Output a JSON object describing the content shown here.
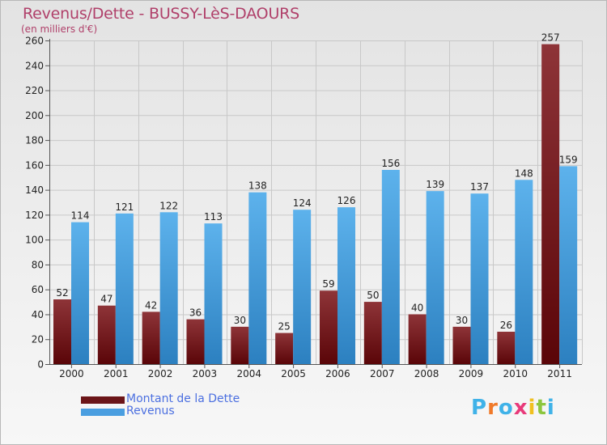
{
  "title": "Revenus/Dette - BUSSY-LèS-DAOURS",
  "subtitle": "(en milliers d'€)",
  "logo": {
    "letters": [
      "P",
      "r",
      "o",
      "x",
      "i",
      "t",
      "i"
    ],
    "colors": [
      "#3fb2e8",
      "#f07a2a",
      "#3fb2e8",
      "#e83a7a",
      "#f0c020",
      "#8cc63e",
      "#3fb2e8"
    ]
  },
  "colors": {
    "dette_top": "#8e3438",
    "dette_bottom": "#5a0508",
    "revenus_top": "#5db2ec",
    "revenus_bottom": "#2c80c0"
  },
  "legend": [
    {
      "label": "Montant de la Dette",
      "color": "#6b1518"
    },
    {
      "label": "Revenus",
      "color": "#4a9ee0"
    }
  ],
  "chart_data": {
    "type": "bar",
    "title": "Revenus/Dette - BUSSY-LèS-DAOURS",
    "subtitle": "(en milliers d'€)",
    "categories": [
      "2000",
      "2001",
      "2002",
      "2003",
      "2004",
      "2005",
      "2006",
      "2007",
      "2008",
      "2009",
      "2010",
      "2011"
    ],
    "series": [
      {
        "name": "Montant de la Dette",
        "values": [
          52,
          47,
          42,
          36,
          30,
          25,
          59,
          50,
          40,
          30,
          26,
          257
        ]
      },
      {
        "name": "Revenus",
        "values": [
          114,
          121,
          122,
          113,
          138,
          124,
          126,
          156,
          139,
          137,
          148,
          159
        ]
      }
    ],
    "yticks": [
      0,
      20,
      40,
      60,
      80,
      100,
      120,
      140,
      160,
      180,
      200,
      220,
      240,
      260
    ],
    "ylim": [
      0,
      260
    ],
    "grid": true,
    "legend_position": "bottom-left"
  }
}
